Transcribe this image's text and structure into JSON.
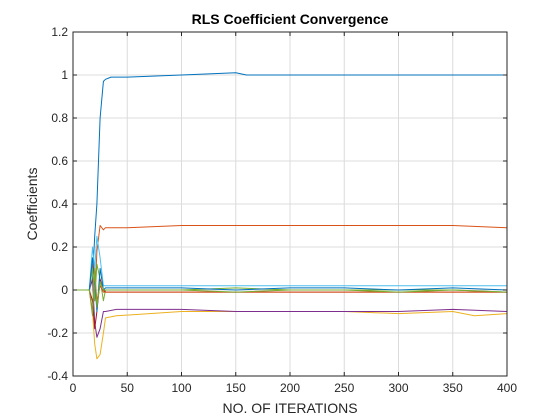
{
  "chart_data": {
    "type": "line",
    "title": "RLS Coefficient Convergence",
    "xlabel": "NO. OF ITERATIONS",
    "ylabel": "Coefficients",
    "xlim": [
      0,
      400
    ],
    "ylim": [
      -0.4,
      1.2
    ],
    "xticks": [
      0,
      50,
      100,
      150,
      200,
      250,
      300,
      350,
      400
    ],
    "yticks": [
      -0.4,
      -0.2,
      0,
      0.2,
      0.4,
      0.6,
      0.8,
      1,
      1.2
    ],
    "ytick_labels": [
      "-0.4",
      "-0.2",
      "0",
      "0.2",
      "0.4",
      "0.6",
      "0.8",
      "1",
      "1.2"
    ],
    "grid": true,
    "legend": "none",
    "series": [
      {
        "color": "#0072BD",
        "x": [
          0,
          15,
          18,
          20,
          22,
          25,
          28,
          30,
          35,
          50,
          100,
          150,
          160,
          200,
          250,
          300,
          350,
          400
        ],
        "y": [
          0,
          0,
          0.05,
          0.25,
          0.4,
          0.8,
          0.97,
          0.98,
          0.99,
          0.99,
          1.0,
          1.01,
          1.0,
          1.0,
          1.0,
          1.0,
          1.0,
          1.0
        ]
      },
      {
        "color": "#D95319",
        "x": [
          0,
          15,
          18,
          20,
          22,
          25,
          28,
          30,
          50,
          100,
          150,
          200,
          250,
          300,
          350,
          400
        ],
        "y": [
          0,
          0,
          0.12,
          -0.05,
          0.18,
          0.3,
          0.28,
          0.29,
          0.29,
          0.3,
          0.3,
          0.3,
          0.3,
          0.3,
          0.3,
          0.29
        ]
      },
      {
        "color": "#EDB120",
        "x": [
          0,
          15,
          18,
          20,
          22,
          25,
          28,
          30,
          40,
          100,
          150,
          200,
          250,
          300,
          350,
          370,
          400
        ],
        "y": [
          0,
          0,
          -0.1,
          -0.25,
          -0.32,
          -0.3,
          -0.2,
          -0.13,
          -0.12,
          -0.1,
          -0.1,
          -0.1,
          -0.1,
          -0.11,
          -0.1,
          -0.12,
          -0.11
        ]
      },
      {
        "color": "#7E2F8E",
        "x": [
          0,
          15,
          18,
          20,
          22,
          25,
          28,
          30,
          40,
          100,
          150,
          200,
          250,
          300,
          350,
          400
        ],
        "y": [
          0,
          0,
          0.05,
          -0.15,
          -0.22,
          -0.18,
          -0.1,
          -0.1,
          -0.09,
          -0.09,
          -0.1,
          -0.1,
          -0.1,
          -0.1,
          -0.09,
          -0.1
        ]
      },
      {
        "color": "#77AC30",
        "x": [
          0,
          15,
          18,
          20,
          22,
          25,
          28,
          30,
          40,
          100,
          150,
          200,
          250,
          300,
          350,
          400
        ],
        "y": [
          0,
          0,
          0.1,
          -0.05,
          0.12,
          0.05,
          -0.05,
          0.0,
          0.0,
          0.0,
          0.01,
          0.0,
          0.0,
          0.0,
          0.0,
          -0.01
        ]
      },
      {
        "color": "#4DBEEE",
        "x": [
          0,
          15,
          18,
          20,
          22,
          25,
          28,
          30,
          40,
          100,
          150,
          200,
          250,
          300,
          350,
          400
        ],
        "y": [
          0,
          0,
          0.2,
          0.1,
          0.25,
          0.15,
          0.02,
          0.02,
          0.02,
          0.02,
          0.02,
          0.02,
          0.02,
          0.02,
          0.02,
          0.02
        ]
      },
      {
        "color": "#A2142F",
        "x": [
          0,
          15,
          18,
          20,
          22,
          25,
          28,
          30,
          40,
          100,
          150,
          200,
          250,
          300,
          350,
          400
        ],
        "y": [
          0,
          0,
          -0.05,
          -0.18,
          -0.1,
          0.05,
          0.0,
          -0.01,
          -0.01,
          -0.01,
          -0.01,
          -0.01,
          -0.01,
          -0.01,
          -0.01,
          -0.01
        ]
      },
      {
        "color": "#0072BD",
        "x": [
          0,
          15,
          18,
          20,
          22,
          25,
          28,
          30,
          40,
          100,
          150,
          200,
          250,
          300,
          350,
          400
        ],
        "y": [
          0,
          0,
          0.15,
          0.05,
          -0.1,
          0.1,
          0.0,
          0.01,
          0.01,
          0.01,
          0.0,
          0.01,
          0.01,
          0.0,
          0.01,
          0.0
        ]
      },
      {
        "color": "#D95319",
        "x": [
          0,
          15,
          18,
          20,
          22,
          25,
          28,
          30,
          40,
          100,
          150,
          200,
          250,
          300,
          350,
          400
        ],
        "y": [
          0,
          0,
          -0.1,
          0.08,
          -0.05,
          0.02,
          -0.01,
          -0.01,
          -0.01,
          -0.01,
          -0.01,
          -0.01,
          -0.01,
          -0.01,
          -0.01,
          -0.01
        ]
      },
      {
        "color": "#77AC30",
        "x": [
          0,
          15,
          18,
          20,
          22,
          25,
          28,
          30,
          40,
          100,
          150,
          200,
          250,
          300,
          350,
          400
        ],
        "y": [
          0,
          0,
          -0.12,
          0.1,
          -0.08,
          0.04,
          0.0,
          0.0,
          0.0,
          0.0,
          -0.01,
          0.0,
          0.0,
          -0.01,
          0.0,
          -0.01
        ]
      }
    ]
  }
}
